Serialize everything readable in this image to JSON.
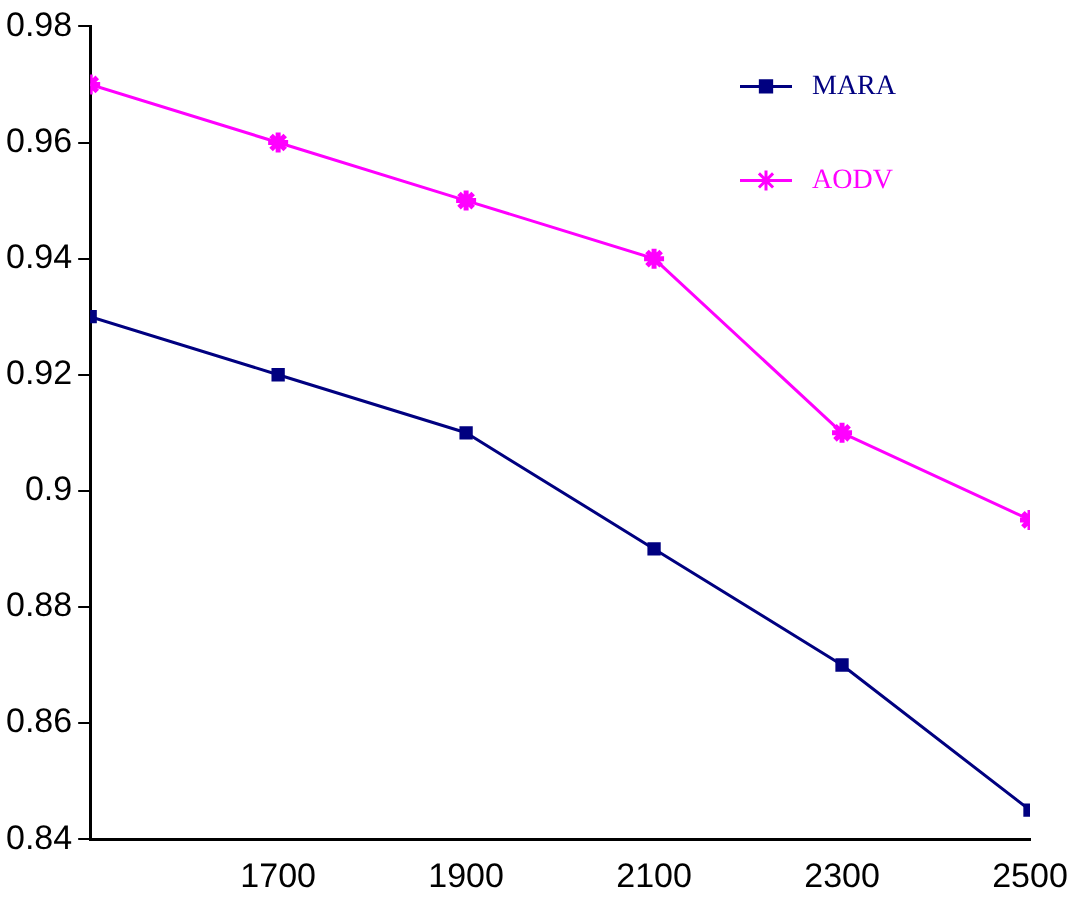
{
  "chart_data": {
    "type": "line",
    "x": [
      1500,
      1700,
      1900,
      2100,
      2300,
      2500
    ],
    "series": [
      {
        "name": "MARA",
        "color": "#000080",
        "marker": "square",
        "values": [
          0.93,
          0.92,
          0.91,
          0.89,
          0.87,
          0.845
        ]
      },
      {
        "name": "AODV",
        "color": "#ff00ff",
        "marker": "cross",
        "values": [
          0.97,
          0.96,
          0.95,
          0.94,
          0.91,
          0.895
        ]
      }
    ],
    "xlim": [
      1500,
      2500
    ],
    "xticks": [
      1700,
      1900,
      2100,
      2300,
      2500
    ],
    "ylim": [
      0.84,
      0.98
    ],
    "yticks": [
      0.84,
      0.86,
      0.88,
      0.9,
      0.92,
      0.94,
      0.96,
      0.98
    ],
    "grid": false,
    "legend": "top right",
    "line_style": "solid"
  }
}
